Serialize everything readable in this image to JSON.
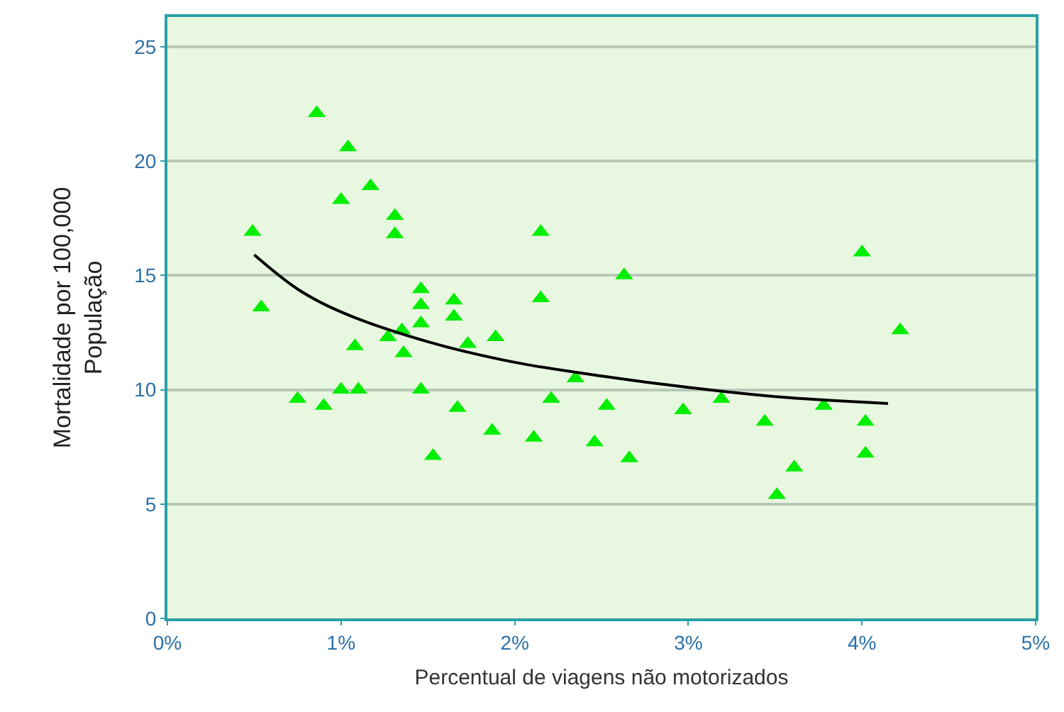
{
  "chart_data": {
    "type": "scatter",
    "xlabel": "Percentual de viagens não motorizados",
    "ylabel": "Mortalidade por 100,000\nPopulação",
    "xlim": [
      0,
      5
    ],
    "ylim": [
      0,
      26.3
    ],
    "xticks": [
      {
        "value": 0,
        "label": "0%"
      },
      {
        "value": 1,
        "label": "1%"
      },
      {
        "value": 2,
        "label": "2%"
      },
      {
        "value": 3,
        "label": "3%"
      },
      {
        "value": 4,
        "label": "4%"
      },
      {
        "value": 5,
        "label": "5%"
      }
    ],
    "yticks": [
      0,
      5,
      10,
      15,
      20,
      25
    ],
    "grid": "y",
    "marker": "triangle",
    "series": [
      {
        "color": "#00ee00",
        "x": [
          0.49,
          0.54,
          0.86,
          0.75,
          0.9,
          1.04,
          1.0,
          1.17,
          1.31,
          1.31,
          1.08,
          1.0,
          1.1,
          1.27,
          1.35,
          1.36,
          1.46,
          1.46,
          1.46,
          1.46,
          1.53,
          1.65,
          1.65,
          1.73,
          1.67,
          1.89,
          1.87,
          2.15,
          2.15,
          2.21,
          2.11,
          2.35,
          2.46,
          2.53,
          2.66,
          2.63,
          2.97,
          3.19,
          3.44,
          3.61,
          3.51,
          3.78,
          4.0,
          4.02,
          4.02,
          4.22
        ],
        "values": [
          16.9,
          13.6,
          22.1,
          9.6,
          9.3,
          20.6,
          18.3,
          18.9,
          17.6,
          16.8,
          11.9,
          10.0,
          10.0,
          12.3,
          12.6,
          11.6,
          14.4,
          13.7,
          12.9,
          10.0,
          7.1,
          13.9,
          13.2,
          12.0,
          9.2,
          12.3,
          8.2,
          16.9,
          14.0,
          9.6,
          7.9,
          10.5,
          7.7,
          9.3,
          7.0,
          15.0,
          9.1,
          9.6,
          8.6,
          6.6,
          5.4,
          9.3,
          16.0,
          8.6,
          7.2,
          12.6
        ]
      },
      {
        "type": "line",
        "color": "#000000",
        "marker": "none",
        "line_style": "solid",
        "x": [
          0.5,
          0.75,
          1.0,
          1.5,
          2.0,
          2.5,
          3.0,
          3.5,
          4.15
        ],
        "values": [
          15.9,
          14.4,
          13.4,
          12.1,
          11.2,
          10.6,
          10.1,
          9.7,
          9.4
        ]
      }
    ]
  }
}
